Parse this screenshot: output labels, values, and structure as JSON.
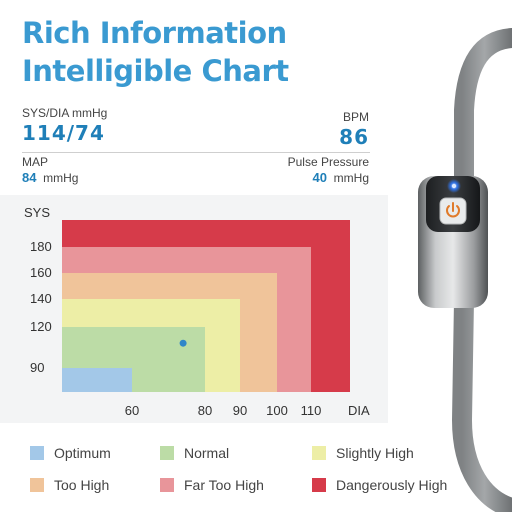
{
  "title": {
    "line1": "Rich Information",
    "line2": "Intelligible Chart"
  },
  "readout": {
    "sys_dia_label": "SYS/DIA mmHg",
    "sys_dia_value": "114/74",
    "bpm_label": "BPM",
    "bpm_value": "86",
    "map_label": "MAP",
    "map_value": "84",
    "map_unit": "mmHg",
    "pp_label": "Pulse Pressure",
    "pp_value": "40",
    "pp_unit": "mmHg"
  },
  "chart_data": {
    "type": "heatmap",
    "y_axis_label": "SYS",
    "x_axis_label": "DIA",
    "y_ticks": [
      90,
      120,
      140,
      160,
      180
    ],
    "x_ticks": [
      60,
      80,
      90,
      100,
      110
    ],
    "zones": [
      {
        "name": "Dangerously High",
        "sys_max": 180,
        "dia_max": 110,
        "color": "#d63b4a"
      },
      {
        "name": "Far Too High",
        "sys_max": 160,
        "dia_max": 100,
        "color": "#e8959a"
      },
      {
        "name": "Too High",
        "sys_max": 140,
        "dia_max": 90,
        "color": "#f0c49a"
      },
      {
        "name": "Slightly High",
        "sys_max": 120,
        "dia_max": 80,
        "color": "#edeea6"
      },
      {
        "name": "Normal",
        "sys_max": 90,
        "dia_max": 60,
        "color": "#bcdca6"
      },
      {
        "name": "Optimum",
        "sys_max": 90,
        "dia_max": 60,
        "color": "#a3c8e8"
      }
    ],
    "reading": {
      "sys": 114,
      "dia": 74,
      "color": "#2f86c9"
    }
  },
  "legend": [
    {
      "label": "Optimum",
      "color": "#a3c8e8"
    },
    {
      "label": "Normal",
      "color": "#bcdca6"
    },
    {
      "label": "Slightly High",
      "color": "#edeea6"
    },
    {
      "label": "Too High",
      "color": "#f0c49a"
    },
    {
      "label": "Far Too High",
      "color": "#e8959a"
    },
    {
      "label": "Dangerously High",
      "color": "#d63b4a"
    }
  ],
  "device": {
    "button_icon": "power-icon",
    "led_color": "#2f6fe0"
  }
}
